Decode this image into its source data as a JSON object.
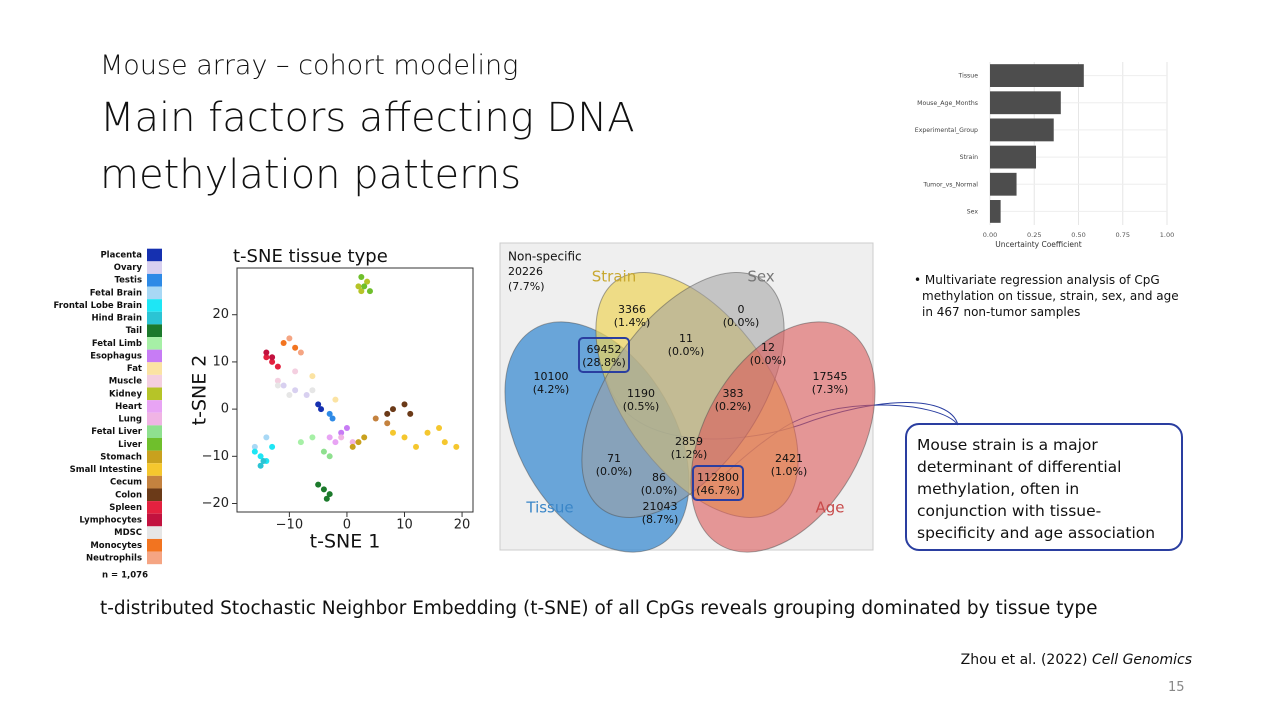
{
  "slide": {
    "subtitle": "Mouse array – cohort modeling",
    "title_lines": [
      "Main factors affecting DNA",
      "methylation patterns"
    ],
    "caption": "t-distributed Stochastic Neighbor Embedding (t-SNE) of all CpGs reveals grouping dominated by tissue type",
    "citation": {
      "authors": "Zhou et al. (2022)",
      "journal": "Cell Genomics"
    },
    "page_number": "15"
  },
  "chart_data": [
    {
      "type": "bar",
      "orientation": "horizontal",
      "categories": [
        "Tissue",
        "Mouse_Age_Months",
        "Experimental_Group",
        "Strain",
        "Tumor_vs_Normal",
        "Sex"
      ],
      "values": [
        0.53,
        0.4,
        0.36,
        0.26,
        0.15,
        0.06
      ],
      "color": "#4d4d4d",
      "xlim": [
        0,
        1.0
      ],
      "xticks": [
        {
          "value": 0,
          "label": "0.00"
        },
        {
          "value": 0.25,
          "label": "0.25"
        },
        {
          "value": 0.5,
          "label": "0.50"
        },
        {
          "value": 0.75,
          "label": "0.75"
        },
        {
          "value": 1.0,
          "label": "1.00"
        }
      ],
      "x_label": "Uncertainty Coefficient",
      "grid": true
    },
    {
      "type": "scatter",
      "title": "t-SNE tissue type",
      "x_label": "t-SNE 1",
      "y_label": "t-SNE 2",
      "xlim": [
        -19.1,
        21.9
      ],
      "ylim": [
        -21.8,
        29.9
      ],
      "xticks": [
        {
          "value": -10,
          "label": "−10"
        },
        0,
        10,
        20
      ],
      "yticks": [
        {
          "value": -20,
          "label": "−20"
        },
        {
          "value": -10,
          "label": "−10"
        },
        0,
        10,
        20
      ],
      "sample_count": "n = 1,076",
      "series": [
        {
          "name": "Placenta",
          "color": "#1530b0",
          "x": [
            -5,
            -4.5
          ],
          "y": [
            1,
            0
          ]
        },
        {
          "name": "Ovary",
          "color": "#d8d0f0",
          "x": [
            -9,
            -7,
            -11
          ],
          "y": [
            4,
            3,
            5
          ]
        },
        {
          "name": "Testis",
          "color": "#2e8ae6",
          "x": [
            -3,
            -2.5
          ],
          "y": [
            -1,
            -2
          ]
        },
        {
          "name": "Fetal Brain",
          "color": "#a8d8f5",
          "x": [
            -16,
            -14
          ],
          "y": [
            -8,
            -6
          ]
        },
        {
          "name": "Frontal Lobe Brain",
          "color": "#1ee6f5",
          "x": [
            -15,
            -14,
            -16,
            -13
          ],
          "y": [
            -10,
            -11,
            -9,
            -8
          ]
        },
        {
          "name": "Hind Brain",
          "color": "#2bc4d4",
          "x": [
            -15,
            -14.5
          ],
          "y": [
            -12,
            -11
          ]
        },
        {
          "name": "Tail",
          "color": "#1c7a2c",
          "x": [
            -4,
            -3,
            -5,
            -3.5
          ],
          "y": [
            -17,
            -18,
            -16,
            -19
          ]
        },
        {
          "name": "Fetal Limb",
          "color": "#a6f0a6",
          "x": [
            -8,
            -6
          ],
          "y": [
            -7,
            -6
          ]
        },
        {
          "name": "Esophagus",
          "color": "#c77cf5",
          "x": [
            -1,
            0
          ],
          "y": [
            -5,
            -4
          ]
        },
        {
          "name": "Fat",
          "color": "#fbe3a3",
          "x": [
            -6,
            -2
          ],
          "y": [
            7,
            2
          ]
        },
        {
          "name": "Muscle",
          "color": "#f4cfe0",
          "x": [
            -9,
            -12
          ],
          "y": [
            8,
            6
          ]
        },
        {
          "name": "Kidney",
          "color": "#b6c428",
          "x": [
            2.5,
            3.5,
            2
          ],
          "y": [
            25,
            27,
            26
          ]
        },
        {
          "name": "Heart",
          "color": "#e8a4f4",
          "x": [
            -2,
            -3
          ],
          "y": [
            -7,
            -6
          ]
        },
        {
          "name": "Lung",
          "color": "#f0b4e4",
          "x": [
            -1,
            1
          ],
          "y": [
            -6,
            -7
          ]
        },
        {
          "name": "Fetal Liver",
          "color": "#8fe08f",
          "x": [
            -3,
            -4
          ],
          "y": [
            -10,
            -9
          ]
        },
        {
          "name": "Liver",
          "color": "#6fbf2c",
          "x": [
            3,
            4,
            2.5
          ],
          "y": [
            26,
            25,
            28
          ]
        },
        {
          "name": "Stomach",
          "color": "#c9a11e",
          "x": [
            2,
            3,
            1
          ],
          "y": [
            -7,
            -6,
            -8
          ]
        },
        {
          "name": "Small Intestine",
          "color": "#f5c72e",
          "x": [
            10,
            14,
            17,
            12,
            19,
            8,
            16
          ],
          "y": [
            -6,
            -5,
            -7,
            -8,
            -8,
            -5,
            -4
          ]
        },
        {
          "name": "Cecum",
          "color": "#c4823f",
          "x": [
            7,
            5
          ],
          "y": [
            -3,
            -2
          ]
        },
        {
          "name": "Colon",
          "color": "#6b3a18",
          "x": [
            8,
            10,
            11,
            7
          ],
          "y": [
            0,
            1,
            -1,
            -1
          ]
        },
        {
          "name": "Spleen",
          "color": "#e3213f",
          "x": [
            -13,
            -12,
            -14
          ],
          "y": [
            10,
            9,
            11
          ]
        },
        {
          "name": "Lymphocytes",
          "color": "#c2123f",
          "x": [
            -14,
            -13
          ],
          "y": [
            12,
            11
          ]
        },
        {
          "name": "MDSC",
          "color": "#e6e6e6",
          "x": [
            -12,
            -10,
            -6
          ],
          "y": [
            5,
            3,
            4
          ]
        },
        {
          "name": "Monocytes",
          "color": "#f27420",
          "x": [
            -11,
            -9
          ],
          "y": [
            14,
            13
          ]
        },
        {
          "name": "Neutrophils",
          "color": "#f5a583",
          "x": [
            -8,
            -10
          ],
          "y": [
            12,
            15
          ]
        }
      ]
    }
  ],
  "bullet": "Multivariate regression analysis of CpG methylation on tissue, strain, sex, and age in 467 non-tumor samples",
  "venn": {
    "non_specific": {
      "label": "Non-specific",
      "count": 20226,
      "percent": "(7.7%)"
    },
    "sets": [
      {
        "name": "Tissue",
        "color": "#3a86c8"
      },
      {
        "name": "Strain",
        "color": "#c8a830"
      },
      {
        "name": "Sex",
        "color": "#777777"
      },
      {
        "name": "Age",
        "color": "#c84a4a"
      }
    ],
    "regions": [
      {
        "count": 3366,
        "percent": "(1.4%)"
      },
      {
        "count": 0,
        "percent": "(0.0%)"
      },
      {
        "count": 69452,
        "percent": "(28.8%)",
        "highlight": true
      },
      {
        "count": 11,
        "percent": "(0.0%)"
      },
      {
        "count": 12,
        "percent": "(0.0%)"
      },
      {
        "count": 10100,
        "percent": "(4.2%)"
      },
      {
        "count": 17545,
        "percent": "(7.3%)"
      },
      {
        "count": 1190,
        "percent": "(0.5%)"
      },
      {
        "count": 383,
        "percent": "(0.2%)"
      },
      {
        "count": 2859,
        "percent": "(1.2%)"
      },
      {
        "count": 71,
        "percent": "(0.0%)"
      },
      {
        "count": 2421,
        "percent": "(1.0%)"
      },
      {
        "count": 86,
        "percent": "(0.0%)"
      },
      {
        "count": 112800,
        "percent": "(46.7%)",
        "highlight": true
      },
      {
        "count": 21043,
        "percent": "(8.7%)"
      }
    ]
  },
  "callout": "Mouse strain is a major determinant of differential methylation, often in conjunction with tissue-specificity and age association"
}
